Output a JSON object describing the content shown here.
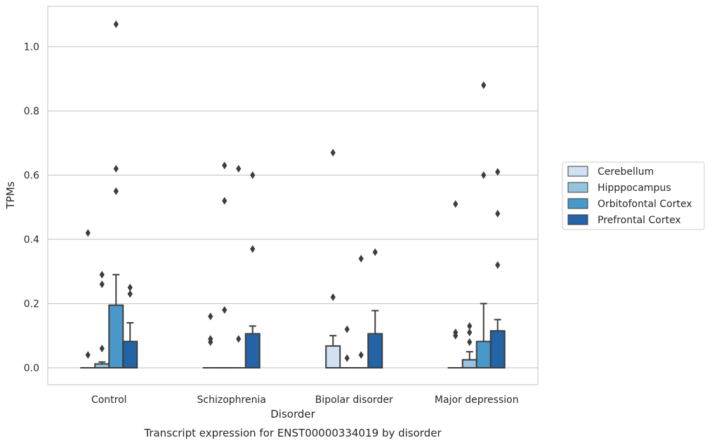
{
  "chart_data": {
    "type": "box",
    "title": "Transcript expression for ENST00000334019 by disorder",
    "xlabel": "Disorder",
    "ylabel": "TPMs",
    "ylim": [
      -0.05,
      1.13
    ],
    "yticks": [
      "0.0",
      "0.2",
      "0.4",
      "0.6",
      "0.8",
      "1.0"
    ],
    "grid": true,
    "legend_position": "right",
    "categories": [
      "Control",
      "Schizophrenia",
      "Bipolar disorder",
      "Major depression"
    ],
    "series": [
      {
        "name": "Cerebellum",
        "color": "#d0e1f2",
        "boxes": [
          {
            "q1": 0,
            "median": 0,
            "q3": 0,
            "whisker_low": 0,
            "whisker_high": 0,
            "outliers": [
              0.04,
              0.42
            ]
          },
          {
            "q1": 0,
            "median": 0,
            "q3": 0,
            "whisker_low": 0,
            "whisker_high": 0,
            "outliers": [
              0.08,
              0.09,
              0.16
            ]
          },
          {
            "q1": 0,
            "median": 0,
            "q3": 0.068,
            "whisker_low": 0,
            "whisker_high": 0.1,
            "outliers": [
              0.22,
              0.67
            ]
          },
          {
            "q1": 0,
            "median": 0,
            "q3": 0,
            "whisker_low": 0,
            "whisker_high": 0,
            "outliers": [
              0.1,
              0.11,
              0.51
            ]
          }
        ]
      },
      {
        "name": "Hipppocampus",
        "color": "#94c4df",
        "boxes": [
          {
            "q1": 0,
            "median": 0,
            "q3": 0.012,
            "whisker_low": 0,
            "whisker_high": 0.018,
            "outliers": [
              0.06,
              0.26,
              0.29
            ]
          },
          {
            "q1": 0,
            "median": 0,
            "q3": 0,
            "whisker_low": 0,
            "whisker_high": 0,
            "outliers": [
              0.18,
              0.52,
              0.63
            ]
          },
          {
            "q1": 0,
            "median": 0,
            "q3": 0,
            "whisker_low": 0,
            "whisker_high": 0,
            "outliers": [
              0.03,
              0.12
            ]
          },
          {
            "q1": 0,
            "median": 0,
            "q3": 0.025,
            "whisker_low": 0,
            "whisker_high": 0.05,
            "outliers": [
              0.08,
              0.11,
              0.13
            ]
          }
        ]
      },
      {
        "name": "Orbitofontal Cortex",
        "color": "#4a98c9",
        "boxes": [
          {
            "q1": 0,
            "median": 0,
            "q3": 0.195,
            "whisker_low": 0,
            "whisker_high": 0.29,
            "outliers": [
              0.55,
              0.62,
              1.07
            ]
          },
          {
            "q1": 0,
            "median": 0,
            "q3": 0,
            "whisker_low": 0,
            "whisker_high": 0,
            "outliers": [
              0.09,
              0.62
            ]
          },
          {
            "q1": 0,
            "median": 0,
            "q3": 0,
            "whisker_low": 0,
            "whisker_high": 0,
            "outliers": [
              0.04,
              0.34
            ]
          },
          {
            "q1": 0,
            "median": 0,
            "q3": 0.082,
            "whisker_low": 0,
            "whisker_high": 0.2,
            "outliers": [
              0.6,
              0.88
            ]
          }
        ]
      },
      {
        "name": "Prefrontal Cortex",
        "color": "#2363a6",
        "boxes": [
          {
            "q1": 0,
            "median": 0,
            "q3": 0.082,
            "whisker_low": 0,
            "whisker_high": 0.14,
            "outliers": [
              0.23,
              0.25
            ]
          },
          {
            "q1": 0,
            "median": 0,
            "q3": 0.106,
            "whisker_low": 0,
            "whisker_high": 0.13,
            "outliers": [
              0.37,
              0.6
            ]
          },
          {
            "q1": 0,
            "median": 0,
            "q3": 0.106,
            "whisker_low": 0,
            "whisker_high": 0.178,
            "outliers": [
              0.36
            ]
          },
          {
            "q1": 0,
            "median": 0,
            "q3": 0.115,
            "whisker_low": 0,
            "whisker_high": 0.15,
            "outliers": [
              0.32,
              0.48,
              0.61
            ]
          }
        ]
      }
    ]
  }
}
